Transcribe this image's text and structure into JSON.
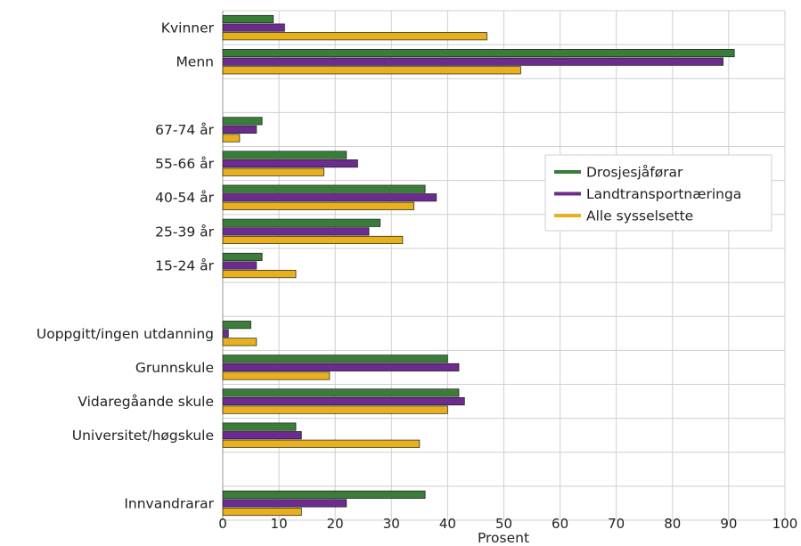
{
  "chart_data": {
    "type": "bar",
    "orientation": "horizontal",
    "xlabel": "Prosent",
    "xlim": [
      0,
      100
    ],
    "xticks": [
      0,
      10,
      20,
      30,
      40,
      50,
      60,
      70,
      80,
      90,
      100
    ],
    "grid": true,
    "legend_position": "right",
    "categories": [
      "Kvinner",
      "Menn",
      "",
      "67-74 år",
      "55-66 år",
      "40-54 år",
      "25-39 år",
      "15-24 år",
      "",
      "Uoppgitt/ingen utdanning",
      "Grunnskule",
      "Vidaregåande skule",
      "Universitet/høgskule",
      "",
      "Innvandrarar"
    ],
    "series": [
      {
        "name": "Drosjesjåførar",
        "color": "#3a7d3a",
        "values": [
          9,
          91,
          null,
          7,
          22,
          36,
          28,
          7,
          null,
          5,
          40,
          42,
          13,
          null,
          36
        ]
      },
      {
        "name": "Landtransportnæringa",
        "color": "#6b2c8e",
        "values": [
          11,
          89,
          null,
          6,
          24,
          38,
          26,
          6,
          null,
          1,
          42,
          43,
          14,
          null,
          22
        ]
      },
      {
        "name": "Alle sysselsette",
        "color": "#e8b01c",
        "values": [
          47,
          53,
          null,
          3,
          18,
          34,
          32,
          13,
          null,
          6,
          19,
          40,
          35,
          null,
          14
        ]
      }
    ]
  }
}
